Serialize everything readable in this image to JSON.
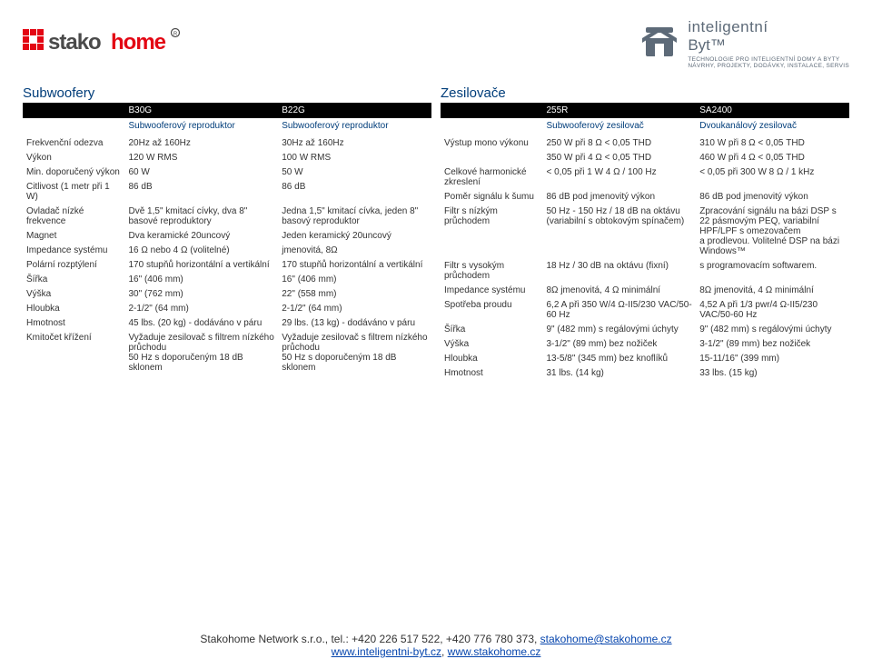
{
  "header": {
    "right_icon_color": "#5d6a78",
    "right_title": "inteligentní",
    "right_sub": "Byt™",
    "right_desc": "TECHNOLOGIE PRO INTELIGENTNÍ DOMY A BYTY\nNÁVRHY, PROJEKTY, DODÁVKY, INSTALACE, SERVIS"
  },
  "left": {
    "title": "Subwoofery",
    "cols": [
      {
        "model": "B30G",
        "desc": "Subwooferový reproduktor"
      },
      {
        "model": "B22G",
        "desc": "Subwooferový reproduktor"
      }
    ],
    "rows": [
      {
        "label": "Frekvenční odezva",
        "v": [
          "20Hz až 160Hz",
          "30Hz až 160Hz"
        ]
      },
      {
        "label": "Výkon",
        "v": [
          "120 W RMS",
          "100 W RMS"
        ]
      },
      {
        "label": "Min. doporučený výkon",
        "v": [
          "60 W",
          "50 W"
        ]
      },
      {
        "label": "Citlivost (1 metr při 1 W)",
        "v": [
          "86 dB",
          "86 dB"
        ]
      },
      {
        "label": "Ovladač nízké frekvence",
        "v": [
          "Dvě 1,5\" kmitací cívky, dva 8\" basové reproduktory",
          "Jedna 1,5\" kmitací cívka, jeden 8\" basový reproduktor"
        ]
      },
      {
        "label": "Magnet",
        "v": [
          "Dva keramické 20uncový",
          "Jeden keramický 20uncový"
        ]
      },
      {
        "label": "Impedance systému",
        "v": [
          "16 Ω nebo 4 Ω (volitelné)",
          "jmenovitá, 8Ω"
        ]
      },
      {
        "label": "Polární rozptýlení",
        "v": [
          "170 stupňů horizontální a vertikální",
          "170 stupňů horizontální a vertikální"
        ]
      },
      {
        "label": "Šířka",
        "v": [
          "16\" (406 mm)",
          "16\" (406 mm)"
        ]
      },
      {
        "label": "Výška",
        "v": [
          "30\" (762 mm)",
          "22\" (558 mm)"
        ]
      },
      {
        "label": "Hloubka",
        "v": [
          "2-1/2\" (64 mm)",
          "2-1/2\" (64 mm)"
        ]
      },
      {
        "label": "Hmotnost",
        "v": [
          "45 lbs. (20 kg) - dodáváno v páru",
          "29 lbs. (13 kg) - dodáváno v páru"
        ]
      },
      {
        "label": "Kmitočet křížení",
        "v": [
          "Vyžaduje zesilovač s filtrem nízkého průchodu\n50 Hz s doporučeným 18 dB sklonem",
          "Vyžaduje zesilovač s filtrem nízkého průchodu\n50 Hz s doporučeným 18 dB sklonem"
        ]
      }
    ]
  },
  "right": {
    "title": "Zesilovače",
    "cols": [
      {
        "model": "255R",
        "desc": "Subwooferový zesilovač"
      },
      {
        "model": "SA2400",
        "desc": "Dvoukanálový zesilovač"
      }
    ],
    "rows": [
      {
        "label": "Výstup mono výkonu",
        "v": [
          "250 W při 8 Ω < 0,05 THD",
          "310 W při 8 Ω < 0,05 THD"
        ]
      },
      {
        "label": "",
        "v": [
          "350 W při 4 Ω < 0,05 THD",
          "460 W při 4 Ω < 0,05 THD"
        ]
      },
      {
        "label": "Celkové harmonické zkreslení",
        "v": [
          "< 0,05 při 1 W 4 Ω / 100 Hz",
          "< 0,05 při 300 W 8 Ω / 1 kHz"
        ]
      },
      {
        "label": "Poměr signálu k šumu",
        "v": [
          "86 dB pod jmenovitý výkon",
          "86 dB pod jmenovitý výkon"
        ]
      },
      {
        "label": "Filtr s nízkým průchodem",
        "v": [
          "50 Hz - 150 Hz / 18 dB na oktávu\n(variabilní s obtokovým spínačem)",
          "Zpracování signálu na bázi DSP s\n22 pásmovým PEQ, variabilní HPF/LPF s omezovačem\na prodlevou. Volitelné DSP na bázi Windows™"
        ]
      },
      {
        "label": "Filtr s vysokým průchodem",
        "v": [
          "18 Hz / 30 dB na oktávu (fixní)",
          "s programovacím softwarem."
        ]
      },
      {
        "label": "Impedance systému",
        "v": [
          "8Ω jmenovitá, 4 Ω minimální",
          "8Ω jmenovitá, 4 Ω minimální"
        ]
      },
      {
        "label": "Spotřeba proudu",
        "v": [
          "6,2 A při 350 W/4 Ω-II5/230 VAC/50-60 Hz",
          "4,52 A při 1/3 pwr/4 Ω-II5/230 VAC/50-60 Hz"
        ]
      },
      {
        "label": "Šířka",
        "v": [
          "9\" (482 mm) s regálovými úchyty",
          "9\" (482 mm) s regálovými úchyty"
        ]
      },
      {
        "label": "Výška",
        "v": [
          "3-1/2\" (89 mm) bez nožiček",
          "3-1/2\" (89 mm) bez nožiček"
        ]
      },
      {
        "label": "Hloubka",
        "v": [
          "13-5/8\" (345 mm) bez knoflíků",
          "15-11/16\" (399 mm)"
        ]
      },
      {
        "label": "Hmotnost",
        "v": [
          "31 lbs. (14 kg)",
          "33 lbs. (15 kg)"
        ]
      }
    ]
  },
  "footer": {
    "line1a": "Stakohome Network s.r.o., tel.: +420 226 517 522, +420 776 780 373, ",
    "email": "stakohome@stakohome.cz",
    "link1": "www.inteligentni-byt.cz",
    "sep": ", ",
    "link2": "www.stakohome.cz"
  },
  "colors": {
    "heading": "#003d7a",
    "header_bg": "#000000",
    "logo_red": "#e30613",
    "logo_gray": "#4a4a4a",
    "link": "#0645ad"
  }
}
